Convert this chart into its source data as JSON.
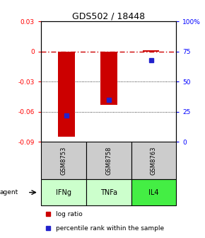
{
  "title": "GDS502 / 18448",
  "samples": [
    "GSM8753",
    "GSM8758",
    "GSM8763"
  ],
  "agents": [
    "IFNg",
    "TNFa",
    "IL4"
  ],
  "log_ratios": [
    -0.085,
    -0.053,
    0.001
  ],
  "percentile_ranks": [
    22,
    35,
    68
  ],
  "left_ylim": [
    -0.09,
    0.03
  ],
  "right_ylim": [
    0,
    100
  ],
  "left_yticks": [
    0.03,
    0.0,
    -0.03,
    -0.06,
    -0.09
  ],
  "right_yticks": [
    100,
    75,
    50,
    25,
    0
  ],
  "bar_color": "#cc0000",
  "dot_color": "#2222cc",
  "agent_colors": [
    "#ccffcc",
    "#ccffcc",
    "#44ee44"
  ],
  "sample_bg": "#cccccc",
  "zero_line_color": "#cc0000",
  "grid_color": "#555555",
  "legend_bar_label": "log ratio",
  "legend_dot_label": "percentile rank within the sample",
  "agent_label": "agent"
}
